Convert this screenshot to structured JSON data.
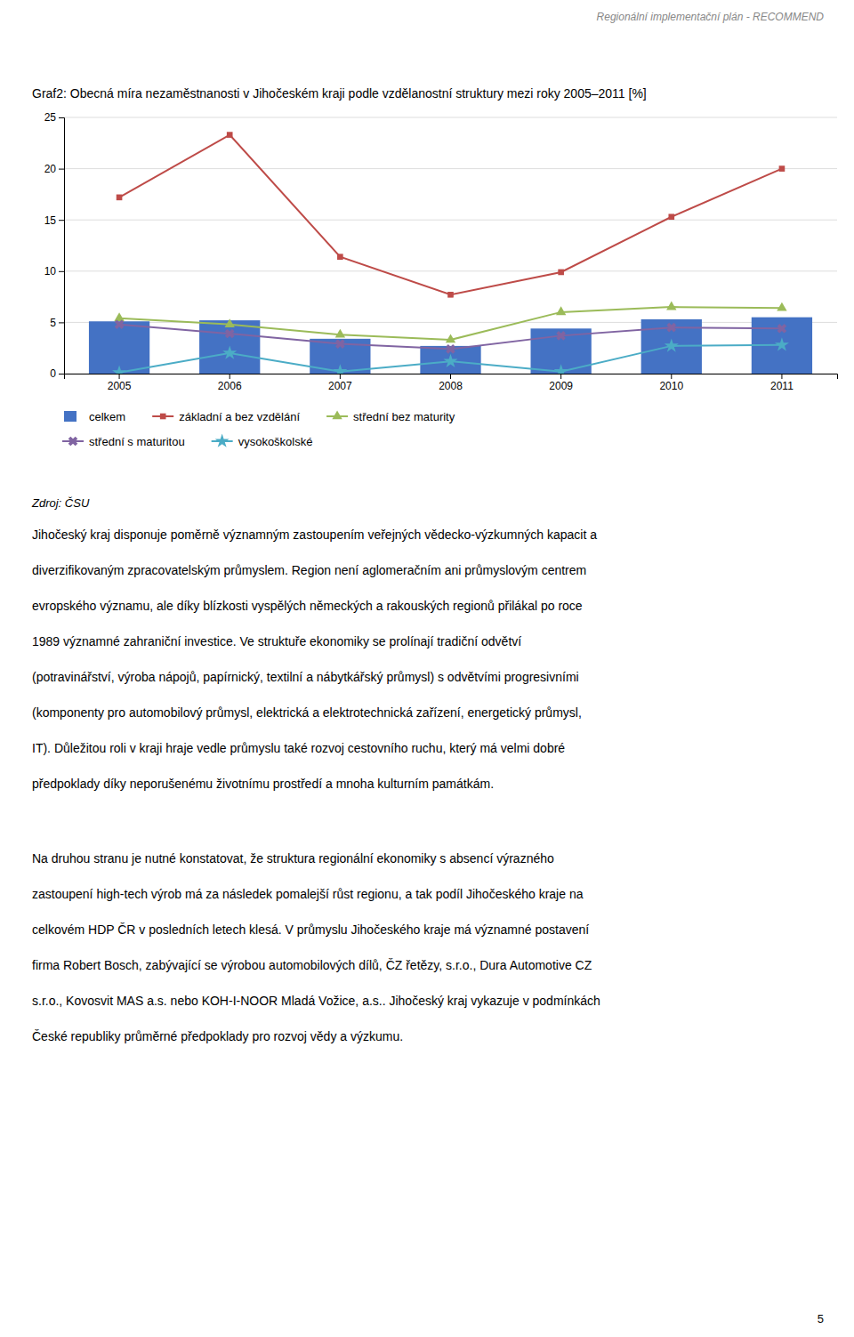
{
  "header": "Regionální implementační plán - RECOMMEND",
  "chart_data": {
    "type": "bar",
    "title": "Graf2: Obecná míra nezaměstnanosti v Jihočeském kraji podle vzdělanostní struktury mezi roky 2005–2011 [%]",
    "categories": [
      "2005",
      "2006",
      "2007",
      "2008",
      "2009",
      "2010",
      "2011"
    ],
    "series": [
      {
        "name": "celkem",
        "type": "bar",
        "color": "#4472C4",
        "values": [
          5.1,
          5.2,
          3.4,
          2.7,
          4.4,
          5.3,
          5.5
        ]
      },
      {
        "name": "základní a bez vzdělání",
        "type": "line",
        "marker": "square",
        "color": "#BE4B48",
        "values": [
          17.2,
          23.3,
          11.4,
          7.7,
          9.9,
          15.3,
          20.0
        ]
      },
      {
        "name": "střední bez maturity",
        "type": "line",
        "marker": "triangle",
        "color": "#9BBB59",
        "values": [
          5.4,
          4.8,
          3.8,
          3.3,
          6.0,
          6.5,
          6.4
        ]
      },
      {
        "name": "střední s maturitou",
        "type": "line",
        "marker": "x",
        "color": "#8064A2",
        "values": [
          4.8,
          3.9,
          2.9,
          2.4,
          3.7,
          4.5,
          4.4
        ]
      },
      {
        "name": "vysokoškolské",
        "type": "line",
        "marker": "star",
        "color": "#4BACC6",
        "values": [
          0.1,
          2.0,
          0.2,
          1.2,
          0.2,
          2.7,
          2.8
        ]
      }
    ],
    "ylim": [
      0,
      25
    ],
    "yticks": [
      0,
      5,
      10,
      15,
      20,
      25
    ],
    "grid": true,
    "legend": "bottom"
  },
  "source": "Zdroj: ČSU",
  "paragraphs": [
    [
      "Jihočeský kraj disponuje poměrně významným zastoupením veřejných vědecko-výzkumných kapacit a",
      "diverzifikovaným zpracovatelským průmyslem. Region není aglomeračním ani průmyslovým centrem",
      "evropského významu, ale díky blízkosti vyspělých německých a rakouských regionů přilákal po roce",
      "1989 významné zahraniční investice. Ve struktuře ekonomiky se prolínají tradiční odvětví",
      "(potravinářství, výroba nápojů, papírnický, textilní a nábytkářský průmysl) s odvětvími progresivními",
      "(komponenty pro automobilový průmysl, elektrická a elektrotechnická zařízení, energetický průmysl,",
      "IT). Důležitou roli v kraji hraje vedle průmyslu také rozvoj cestovního ruchu, který má velmi dobré",
      "předpoklady díky neporušenému životnímu prostředí a mnoha kulturním památkám."
    ],
    [
      "Na druhou stranu je nutné konstatovat, že struktura regionální ekonomiky s absencí výrazného",
      "zastoupení high-tech výrob má za následek pomalejší růst regionu, a tak podíl Jihočeského kraje na",
      "celkovém HDP ČR v posledních letech klesá. V průmyslu Jihočeského kraje má významné postavení",
      "firma Robert Bosch, zabývající se výrobou automobilových dílů, ČZ řetězy, s.r.o., Dura Automotive CZ",
      "s.r.o., Kovosvit MAS a.s. nebo KOH-I-NOOR Mladá Vožice, a.s.. Jihočeský kraj vykazuje v podmínkách",
      "České republiky průměrné předpoklady pro rozvoj vědy a výzkumu."
    ]
  ],
  "page_number": "5"
}
